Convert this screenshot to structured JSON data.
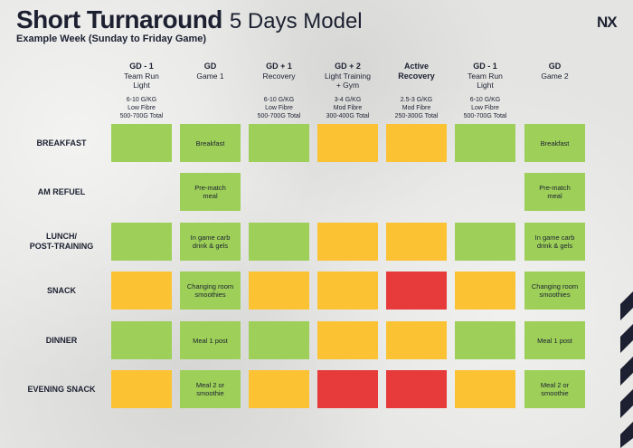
{
  "header": {
    "title": "Short Turnaround",
    "title_suffix": "5 Days Model",
    "subtitle": "Example Week (Sunday to Friday Game)",
    "logo": "NX"
  },
  "columns": [
    {
      "title": "GD - 1",
      "desc": [
        "Team Run",
        "Light"
      ],
      "macros": [
        "6-10 G/KG",
        "Low Fibre",
        "500-700G Total"
      ]
    },
    {
      "title": "GD",
      "desc": [
        "Game 1"
      ],
      "macros": []
    },
    {
      "title": "GD + 1",
      "desc": [
        "Recovery"
      ],
      "macros": [
        "6-10 G/KG",
        "Low Fibre",
        "500-700G Total"
      ]
    },
    {
      "title": "GD + 2",
      "desc": [
        "Light Training",
        "+ Gym"
      ],
      "macros": [
        "3-4 G/KG",
        "Mod Fibre",
        "300-400G Total"
      ]
    },
    {
      "title": "Active",
      "desc": [
        "Recovery"
      ],
      "desc_bold": true,
      "macros": [
        "2.5-3 G/KG",
        "Mod Fibre",
        "250-300G Total"
      ]
    },
    {
      "title": "GD - 1",
      "desc": [
        "Team Run",
        "Light"
      ],
      "macros": [
        "6-10 G/KG",
        "Low Fibre",
        "500-700G Total"
      ]
    },
    {
      "title": "GD",
      "desc": [
        "Game 2"
      ],
      "macros": []
    }
  ],
  "rows": [
    {
      "label": [
        "BREAKFAST"
      ],
      "cells": [
        {
          "color": "green",
          "text": []
        },
        {
          "color": "green",
          "text": [
            "Breakfast"
          ]
        },
        {
          "color": "green",
          "text": []
        },
        {
          "color": "amber",
          "text": []
        },
        {
          "color": "amber",
          "text": []
        },
        {
          "color": "green",
          "text": []
        },
        {
          "color": "green",
          "text": [
            "Breakfast"
          ]
        }
      ]
    },
    {
      "label": [
        "AM REFUEL"
      ],
      "cells": [
        null,
        {
          "color": "green",
          "text": [
            "Pre-match",
            "meal"
          ]
        },
        null,
        null,
        null,
        null,
        {
          "color": "green",
          "text": [
            "Pre-match",
            "meal"
          ]
        }
      ]
    },
    {
      "label": [
        "LUNCH/",
        "POST-TRAINING"
      ],
      "cells": [
        {
          "color": "green",
          "text": []
        },
        {
          "color": "green",
          "text": [
            "In game carb",
            "drink & gels"
          ]
        },
        {
          "color": "green",
          "text": []
        },
        {
          "color": "amber",
          "text": []
        },
        {
          "color": "amber",
          "text": []
        },
        {
          "color": "green",
          "text": []
        },
        {
          "color": "green",
          "text": [
            "In game carb",
            "drink & gels"
          ]
        }
      ]
    },
    {
      "label": [
        "SNACK"
      ],
      "cells": [
        {
          "color": "amber",
          "text": []
        },
        {
          "color": "green",
          "text": [
            "Changing room",
            "smoothies"
          ]
        },
        {
          "color": "amber",
          "text": []
        },
        {
          "color": "amber",
          "text": []
        },
        {
          "color": "red",
          "text": []
        },
        {
          "color": "amber",
          "text": []
        },
        {
          "color": "green",
          "text": [
            "Changing room",
            "smoothies"
          ]
        }
      ]
    },
    {
      "label": [
        "DINNER"
      ],
      "cells": [
        {
          "color": "green",
          "text": []
        },
        {
          "color": "green",
          "text": [
            "Meal 1 post"
          ]
        },
        {
          "color": "green",
          "text": []
        },
        {
          "color": "amber",
          "text": []
        },
        {
          "color": "amber",
          "text": []
        },
        {
          "color": "green",
          "text": []
        },
        {
          "color": "green",
          "text": [
            "Meal 1 post"
          ]
        }
      ]
    },
    {
      "label": [
        "EVENING SNACK"
      ],
      "cells": [
        {
          "color": "amber",
          "text": []
        },
        {
          "color": "green",
          "text": [
            "Meal 2 or",
            "smoothie"
          ]
        },
        {
          "color": "amber",
          "text": []
        },
        {
          "color": "red",
          "text": []
        },
        {
          "color": "red",
          "text": []
        },
        {
          "color": "amber",
          "text": []
        },
        {
          "color": "green",
          "text": [
            "Meal 2 or",
            "smoothie"
          ]
        }
      ]
    }
  ],
  "colors": {
    "green": "#9dcf59",
    "amber": "#fbc234",
    "red": "#e73a3a",
    "navy": "#1c2030"
  }
}
